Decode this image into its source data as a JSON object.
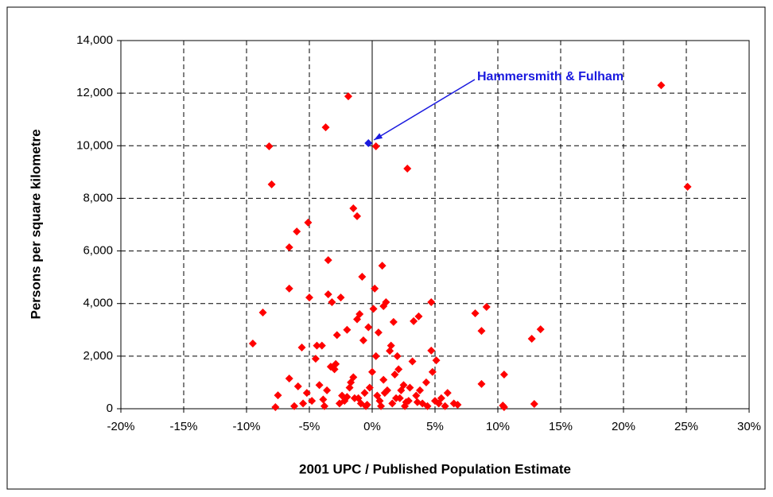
{
  "chart_data": {
    "type": "scatter",
    "xlabel": "2001 UPC / Published Population Estimate",
    "ylabel": "Persons per square kilometre",
    "xlim": [
      -20,
      30
    ],
    "ylim": [
      0,
      14000
    ],
    "xticks": [
      {
        "value": -20,
        "label": "-20%"
      },
      {
        "value": -15,
        "label": "-15%"
      },
      {
        "value": -10,
        "label": "-10%"
      },
      {
        "value": -5,
        "label": "-5%"
      },
      {
        "value": 0,
        "label": "0%"
      },
      {
        "value": 5,
        "label": "5%"
      },
      {
        "value": 10,
        "label": "10%"
      },
      {
        "value": 15,
        "label": "15%"
      },
      {
        "value": 20,
        "label": "20%"
      },
      {
        "value": 25,
        "label": "25%"
      },
      {
        "value": 30,
        "label": "30%"
      }
    ],
    "yticks": [
      0,
      {
        "value": 2000,
        "label": "2,000"
      },
      {
        "value": 4000,
        "label": "4,000"
      },
      {
        "value": 6000,
        "label": "6,000"
      },
      {
        "value": 8000,
        "label": "8,000"
      },
      {
        "value": 10000,
        "label": "10,000"
      },
      {
        "value": 12000,
        "label": "12,000"
      },
      {
        "value": 14000,
        "label": "14,000"
      }
    ],
    "grid": true,
    "color": "#ff0000",
    "x": [
      23.0,
      25.1,
      0.3,
      -1.9,
      -3.7,
      -8.2,
      -8.0,
      2.8,
      -1.5,
      -1.2,
      -6.0,
      -5.1,
      -6.6,
      -3.5,
      0.8,
      -0.8,
      0.2,
      -6.6,
      -3.5,
      -5.0,
      -2.5,
      -3.2,
      -8.7,
      8.2,
      9.1,
      8.7,
      13.4,
      12.7,
      -9.5,
      8.7,
      10.5,
      12.9,
      10.4,
      10.5,
      4.7,
      3.7,
      3.3,
      4.7,
      5.1,
      1.1,
      -7.5,
      -7.7,
      -5.9,
      -5.6,
      -6.6,
      -1.0,
      -0.3,
      0.5,
      1.5,
      2.0,
      -2.0,
      -2.8,
      -4.0,
      -4.5,
      -3.0,
      -1.5,
      0.0,
      0.9,
      1.8,
      2.5,
      3.0,
      3.8,
      4.3,
      5.5,
      6.0,
      6.5,
      -5.2,
      -4.8,
      -4.2,
      -3.6,
      -2.4,
      -1.8,
      -1.1,
      -0.6,
      0.4,
      1.2,
      2.2,
      2.9,
      3.5,
      4.0,
      5.0,
      5.8,
      -5.5,
      -3.8,
      -2.2,
      -0.9,
      0.7,
      1.6,
      2.6,
      4.4,
      -1.4,
      -0.2,
      1.0,
      2.3,
      -2.6,
      -0.5,
      0.6,
      1.9,
      -3.3,
      3.2,
      -0.7,
      0.1,
      1.4,
      -1.7,
      2.1,
      -4.4,
      4.8,
      -2.9,
      0.3,
      1.7,
      -1.2,
      0.9,
      -0.4,
      2.7,
      -3.9,
      3.6,
      6.8,
      -6.2,
      5.3,
      -2.0
    ],
    "y": [
      12300,
      8440,
      9980,
      11880,
      10700,
      9980,
      8530,
      9130,
      7620,
      7320,
      6740,
      7080,
      6140,
      5650,
      5440,
      5020,
      4570,
      4570,
      4350,
      4230,
      4230,
      4050,
      3660,
      3630,
      3870,
      2960,
      3020,
      2660,
      2480,
      940,
      1300,
      180,
      120,
      60,
      4050,
      3510,
      3330,
      2210,
      1840,
      4050,
      510,
      60,
      850,
      2330,
      1150,
      3600,
      3100,
      2900,
      2400,
      2000,
      3000,
      2800,
      2400,
      1900,
      1500,
      1200,
      1400,
      1100,
      1300,
      900,
      800,
      700,
      1000,
      400,
      600,
      200,
      600,
      300,
      900,
      700,
      500,
      800,
      400,
      600,
      500,
      700,
      400,
      300,
      500,
      200,
      300,
      100,
      200,
      100,
      300,
      200,
      100,
      200,
      100,
      100,
      400,
      800,
      600,
      700,
      200,
      100,
      300,
      400,
      1600,
      1800,
      2600,
      3800,
      2200,
      1000,
      1500,
      2400,
      1400,
      1700,
      2000,
      3300,
      3400,
      3900,
      150,
      250,
      350,
      250,
      150,
      100,
      200,
      450
    ],
    "highlight": {
      "label": "Hammersmith & Fulham",
      "x": -0.3,
      "y": 10100,
      "color": "#1a1adf"
    }
  }
}
